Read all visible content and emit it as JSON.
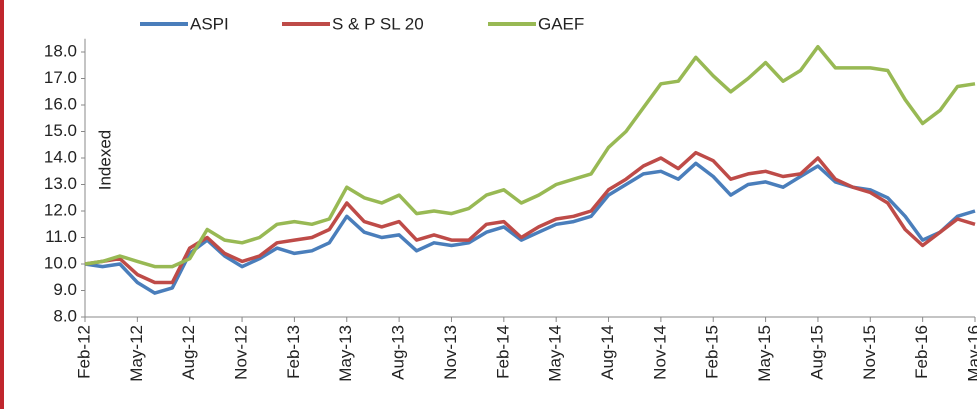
{
  "chart_data": {
    "type": "line",
    "y_label": "Indexed",
    "categories": [
      "Feb-12",
      null,
      null,
      "May-12",
      null,
      null,
      "Aug-12",
      null,
      null,
      "Nov-12",
      null,
      null,
      "Feb-13",
      null,
      null,
      "May-13",
      null,
      null,
      "Aug-13",
      null,
      null,
      "Nov-13",
      null,
      null,
      "Feb-14",
      null,
      null,
      "May-14",
      null,
      null,
      "Aug-14",
      null,
      null,
      "Nov-14",
      null,
      null,
      "Feb-15",
      null,
      null,
      "May-15",
      null,
      null,
      "Aug-15",
      null,
      null,
      "Nov-15",
      null,
      null,
      "Feb-16",
      null,
      null,
      "May-16"
    ],
    "series": [
      {
        "name": "ASPI",
        "color": "#4a7ebb",
        "values": [
          10.0,
          9.9,
          10.0,
          9.3,
          8.9,
          9.1,
          10.4,
          10.9,
          10.3,
          9.9,
          10.2,
          10.6,
          10.4,
          10.5,
          10.8,
          11.8,
          11.2,
          11.0,
          11.1,
          10.5,
          10.8,
          10.7,
          10.8,
          11.2,
          11.4,
          10.9,
          11.2,
          11.5,
          11.6,
          11.8,
          12.6,
          13.0,
          13.4,
          13.5,
          13.2,
          13.8,
          13.3,
          12.6,
          13.0,
          13.1,
          12.9,
          13.3,
          13.7,
          13.1,
          12.9,
          12.8,
          12.5,
          11.8,
          10.9,
          11.2,
          11.8,
          12.0
        ]
      },
      {
        "name": "S & P SL 20",
        "color": "#be4b48",
        "values": [
          10.0,
          10.1,
          10.2,
          9.6,
          9.3,
          9.3,
          10.6,
          11.0,
          10.4,
          10.1,
          10.3,
          10.8,
          10.9,
          11.0,
          11.3,
          12.3,
          11.6,
          11.4,
          11.6,
          10.9,
          11.1,
          10.9,
          10.9,
          11.5,
          11.6,
          11.0,
          11.4,
          11.7,
          11.8,
          12.0,
          12.8,
          13.2,
          13.7,
          14.0,
          13.6,
          14.2,
          13.9,
          13.2,
          13.4,
          13.5,
          13.3,
          13.4,
          14.0,
          13.2,
          12.9,
          12.7,
          12.3,
          11.3,
          10.7,
          11.2,
          11.7,
          11.5
        ]
      },
      {
        "name": "GAEF",
        "color": "#98b954",
        "values": [
          10.0,
          10.1,
          10.3,
          10.1,
          9.9,
          9.9,
          10.2,
          11.3,
          10.9,
          10.8,
          11.0,
          11.5,
          11.6,
          11.5,
          11.7,
          12.9,
          12.5,
          12.3,
          12.6,
          11.9,
          12.0,
          11.9,
          12.1,
          12.6,
          12.8,
          12.3,
          12.6,
          13.0,
          13.2,
          13.4,
          14.4,
          15.0,
          15.9,
          16.8,
          16.9,
          17.8,
          17.1,
          16.5,
          17.0,
          17.6,
          16.9,
          17.3,
          18.2,
          17.4,
          17.4,
          17.4,
          17.3,
          16.2,
          15.3,
          15.8,
          16.7,
          16.8
        ]
      }
    ],
    "ylim": [
      8,
      18.5
    ],
    "yticks": [
      {
        "value": 8,
        "label": "8.0"
      },
      {
        "value": 9,
        "label": "9.0"
      },
      {
        "value": 10,
        "label": "10.0"
      },
      {
        "value": 11,
        "label": "11.0"
      },
      {
        "value": 12,
        "label": "12.0"
      },
      {
        "value": 13,
        "label": "13.0"
      },
      {
        "value": 14,
        "label": "14.0"
      },
      {
        "value": 15,
        "label": "15.0"
      },
      {
        "value": 16,
        "label": "16.0"
      },
      {
        "value": 17,
        "label": "17.0"
      },
      {
        "value": 18,
        "label": "18.0"
      }
    ],
    "legend": "top"
  }
}
